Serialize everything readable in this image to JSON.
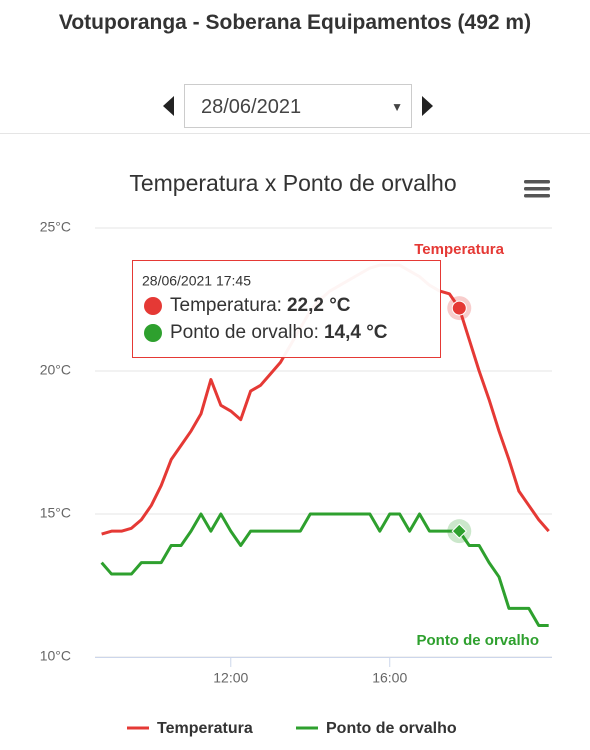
{
  "header": {
    "title": "Votuporanga - Soberana Equipamentos (492 m)",
    "date": "28/06/2021"
  },
  "chart_data": {
    "type": "line",
    "title": "Temperatura x Ponto de orvalho",
    "x": [
      "08:45",
      "09:00",
      "09:15",
      "09:30",
      "09:45",
      "10:00",
      "10:15",
      "10:30",
      "10:45",
      "11:00",
      "11:15",
      "11:30",
      "11:45",
      "12:00",
      "12:15",
      "12:30",
      "12:45",
      "13:00",
      "13:15",
      "13:30",
      "13:45",
      "14:00",
      "14:15",
      "14:30",
      "14:45",
      "15:00",
      "15:15",
      "15:30",
      "15:45",
      "16:00",
      "16:15",
      "16:30",
      "16:45",
      "17:00",
      "17:15",
      "17:30",
      "17:45",
      "18:00",
      "18:15",
      "18:30",
      "18:45",
      "19:00",
      "19:15",
      "19:30",
      "19:45",
      "20:00"
    ],
    "series": [
      {
        "name": "Temperatura",
        "color": "#e53935",
        "values": [
          14.3,
          14.4,
          14.4,
          14.5,
          14.8,
          15.3,
          16.0,
          16.9,
          17.4,
          17.9,
          18.5,
          19.7,
          18.8,
          18.6,
          18.3,
          19.3,
          19.5,
          19.9,
          20.3,
          20.9,
          21.5,
          22.1,
          22.5,
          22.8,
          23.0,
          23.2,
          23.4,
          23.6,
          23.7,
          23.7,
          23.7,
          23.5,
          23.3,
          23.0,
          22.8,
          22.7,
          22.2,
          21.1,
          20.0,
          19.0,
          17.9,
          16.9,
          15.8,
          15.3,
          14.8,
          14.4
        ]
      },
      {
        "name": "Ponto de orvalho",
        "color": "#2ea02e",
        "values": [
          13.3,
          12.9,
          12.9,
          12.9,
          13.3,
          13.3,
          13.3,
          13.9,
          13.9,
          14.4,
          15.0,
          14.4,
          15.0,
          14.4,
          13.9,
          14.4,
          14.4,
          14.4,
          14.4,
          14.4,
          14.4,
          15.0,
          15.0,
          15.0,
          15.0,
          15.0,
          15.0,
          15.0,
          14.4,
          15.0,
          15.0,
          14.4,
          15.0,
          14.4,
          14.4,
          14.4,
          14.4,
          13.9,
          13.9,
          13.3,
          12.8,
          11.7,
          11.7,
          11.7,
          11.1,
          11.1
        ]
      }
    ],
    "xlim": [
      "08:35",
      "20:05"
    ],
    "xticks": [
      "12:00",
      "16:00"
    ],
    "ylim": [
      10,
      25
    ],
    "yticks": [
      {
        "value": 10,
        "label": "10°C"
      },
      {
        "value": 15,
        "label": "15°C"
      },
      {
        "value": 20,
        "label": "20°C"
      },
      {
        "value": 25,
        "label": "25°C"
      }
    ],
    "grid": true,
    "tooltip": {
      "header": "28/06/2021 17:45",
      "index": 36,
      "rows": [
        {
          "label": "Temperatura:",
          "value": "22,2 °C"
        },
        {
          "label": "Ponto de orvalho:",
          "value": "14,4 °C"
        }
      ]
    }
  }
}
